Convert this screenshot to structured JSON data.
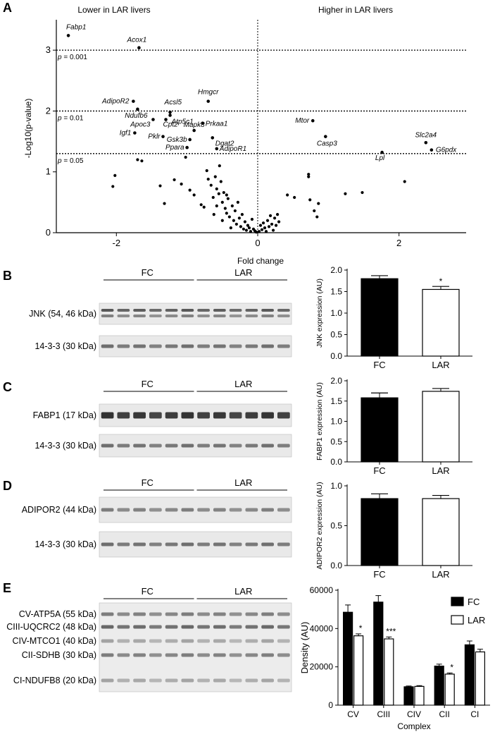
{
  "panels": {
    "A": "A",
    "B": "B",
    "C": "C",
    "D": "D",
    "E": "E"
  },
  "chart_data": [
    {
      "panel": "A",
      "type": "scatter",
      "xlabel": "Fold change",
      "ylabel": "-Log10(p-value)",
      "xlim": [
        -2.85,
        2.95
      ],
      "ylim": [
        0,
        3.5
      ],
      "xticks": [
        "-2",
        "0",
        "2"
      ],
      "yticks": [
        "0",
        "1",
        "2",
        "3"
      ],
      "region_labels": [
        "Lower in LAR livers",
        "Higher in LAR livers"
      ],
      "thresholds": [
        {
          "y": 3.0,
          "label": "p = 0.001"
        },
        {
          "y": 2.0,
          "label": "p = 0.01"
        },
        {
          "y": 1.3,
          "label": "p = 0.05"
        }
      ],
      "labeled_points": [
        {
          "name": "Fabp1",
          "x": -2.68,
          "y": 3.24
        },
        {
          "name": "Acox1",
          "x": -1.68,
          "y": 3.04
        },
        {
          "name": "AdipoR2",
          "x": -1.76,
          "y": 2.16
        },
        {
          "name": "Ndufb6",
          "x": -1.7,
          "y": 2.03
        },
        {
          "name": "Acsl5",
          "x": -1.24,
          "y": 1.98
        },
        {
          "name": "Hmgcr",
          "x": -0.7,
          "y": 2.16
        },
        {
          "name": "Atp5c1",
          "x": -1.24,
          "y": 1.93
        },
        {
          "name": "Apoc3",
          "x": -1.48,
          "y": 1.86
        },
        {
          "name": "Cpt2",
          "x": -1.3,
          "y": 1.86
        },
        {
          "name": "Prkaa1",
          "x": -0.78,
          "y": 1.8
        },
        {
          "name": "Igf1",
          "x": -1.74,
          "y": 1.64
        },
        {
          "name": "Mapk8",
          "x": -0.9,
          "y": 1.68
        },
        {
          "name": "Pklr",
          "x": -1.34,
          "y": 1.58
        },
        {
          "name": "Gsk3b",
          "x": -0.96,
          "y": 1.53
        },
        {
          "name": "Dgat2",
          "x": -0.64,
          "y": 1.56
        },
        {
          "name": "Ppara",
          "x": -1.0,
          "y": 1.4
        },
        {
          "name": "AdipoR1",
          "x": -0.58,
          "y": 1.38
        },
        {
          "name": "Mtor",
          "x": 0.78,
          "y": 1.84
        },
        {
          "name": "Casp3",
          "x": 0.96,
          "y": 1.58
        },
        {
          "name": "Lpl",
          "x": 1.76,
          "y": 1.32
        },
        {
          "name": "Slc2a4",
          "x": 2.38,
          "y": 1.48
        },
        {
          "name": "G6pdx",
          "x": 2.46,
          "y": 1.36
        }
      ],
      "points": [
        {
          "x": -2.02,
          "y": 0.94
        },
        {
          "x": -2.05,
          "y": 0.76
        },
        {
          "x": -1.7,
          "y": 1.2
        },
        {
          "x": -1.64,
          "y": 1.18
        },
        {
          "x": -1.38,
          "y": 0.77
        },
        {
          "x": -1.32,
          "y": 0.48
        },
        {
          "x": -1.18,
          "y": 0.87
        },
        {
          "x": -1.08,
          "y": 0.8
        },
        {
          "x": -1.02,
          "y": 1.24
        },
        {
          "x": -0.96,
          "y": 0.7
        },
        {
          "x": -0.9,
          "y": 0.62
        },
        {
          "x": -0.8,
          "y": 0.46
        },
        {
          "x": -0.76,
          "y": 0.42
        },
        {
          "x": -0.72,
          "y": 1.02
        },
        {
          "x": -0.7,
          "y": 0.88
        },
        {
          "x": -0.66,
          "y": 0.78
        },
        {
          "x": -0.63,
          "y": 0.58
        },
        {
          "x": -0.6,
          "y": 0.92
        },
        {
          "x": -0.58,
          "y": 0.72
        },
        {
          "x": -0.55,
          "y": 0.64
        },
        {
          "x": -0.54,
          "y": 1.1
        },
        {
          "x": -0.52,
          "y": 0.84
        },
        {
          "x": -0.5,
          "y": 0.5
        },
        {
          "x": -0.48,
          "y": 0.66
        },
        {
          "x": -0.46,
          "y": 0.4
        },
        {
          "x": -0.44,
          "y": 0.32
        },
        {
          "x": -0.42,
          "y": 0.56
        },
        {
          "x": -0.4,
          "y": 0.26
        },
        {
          "x": -0.36,
          "y": 0.44
        },
        {
          "x": -0.34,
          "y": 0.2
        },
        {
          "x": -0.32,
          "y": 0.36
        },
        {
          "x": -0.3,
          "y": 0.14
        },
        {
          "x": -0.28,
          "y": 0.5
        },
        {
          "x": -0.26,
          "y": 0.24
        },
        {
          "x": -0.24,
          "y": 0.1
        },
        {
          "x": -0.22,
          "y": 0.3
        },
        {
          "x": -0.2,
          "y": 0.06
        },
        {
          "x": -0.18,
          "y": 0.18
        },
        {
          "x": -0.16,
          "y": 0.04
        },
        {
          "x": -0.14,
          "y": 0.12
        },
        {
          "x": -0.12,
          "y": 0.08
        },
        {
          "x": -0.1,
          "y": 0.02
        },
        {
          "x": -0.08,
          "y": 0.22
        },
        {
          "x": -0.06,
          "y": 0.06
        },
        {
          "x": -0.04,
          "y": 0.03
        },
        {
          "x": -0.02,
          "y": 0.01
        },
        {
          "x": -0.58,
          "y": 0.44
        },
        {
          "x": -0.62,
          "y": 0.3
        },
        {
          "x": -0.44,
          "y": 0.62
        },
        {
          "x": -0.5,
          "y": 0.2
        },
        {
          "x": -0.38,
          "y": 0.08
        },
        {
          "x": 0.02,
          "y": 0.02
        },
        {
          "x": 0.04,
          "y": 0.12
        },
        {
          "x": 0.06,
          "y": 0.05
        },
        {
          "x": 0.08,
          "y": 0.16
        },
        {
          "x": 0.1,
          "y": 0.08
        },
        {
          "x": 0.12,
          "y": 0.02
        },
        {
          "x": 0.14,
          "y": 0.2
        },
        {
          "x": 0.16,
          "y": 0.1
        },
        {
          "x": 0.18,
          "y": 0.28
        },
        {
          "x": 0.2,
          "y": 0.14
        },
        {
          "x": 0.22,
          "y": 0.04
        },
        {
          "x": 0.24,
          "y": 0.24
        },
        {
          "x": 0.26,
          "y": 0.12
        },
        {
          "x": 0.28,
          "y": 0.3
        },
        {
          "x": 0.3,
          "y": 0.18
        },
        {
          "x": 0.42,
          "y": 0.62
        },
        {
          "x": 0.52,
          "y": 0.58
        },
        {
          "x": 0.72,
          "y": 0.96
        },
        {
          "x": 0.72,
          "y": 0.92
        },
        {
          "x": 0.74,
          "y": 0.54
        },
        {
          "x": 0.8,
          "y": 0.36
        },
        {
          "x": 0.84,
          "y": 0.26
        },
        {
          "x": 0.86,
          "y": 0.48
        },
        {
          "x": 1.24,
          "y": 0.64
        },
        {
          "x": 1.48,
          "y": 0.66
        },
        {
          "x": 2.08,
          "y": 0.84
        }
      ]
    },
    {
      "panel": "B",
      "type": "bar",
      "categories": [
        "FC",
        "LAR"
      ],
      "values": [
        1.8,
        1.55
      ],
      "errors": [
        0.07,
        0.07
      ],
      "fills": [
        "#000000",
        "#ffffff"
      ],
      "annotations": [
        "",
        "*"
      ],
      "ylabel": "JNK expression (AU)",
      "ylim": [
        0,
        2.0
      ],
      "yticks": [
        "0.0",
        "0.5",
        "1.0",
        "1.5",
        "2.0"
      ]
    },
    {
      "panel": "C",
      "type": "bar",
      "categories": [
        "FC",
        "LAR"
      ],
      "values": [
        1.58,
        1.74
      ],
      "errors": [
        0.12,
        0.07
      ],
      "fills": [
        "#000000",
        "#ffffff"
      ],
      "annotations": [
        "",
        ""
      ],
      "ylabel": "FABP1 expression (AU)",
      "ylim": [
        0,
        2.0
      ],
      "yticks": [
        "0.0",
        "0.5",
        "1.0",
        "1.5",
        "2.0"
      ]
    },
    {
      "panel": "D",
      "type": "bar",
      "categories": [
        "FC",
        "LAR"
      ],
      "values": [
        0.84,
        0.84
      ],
      "errors": [
        0.06,
        0.04
      ],
      "fills": [
        "#000000",
        "#ffffff"
      ],
      "annotations": [
        "",
        ""
      ],
      "ylabel": "ADIPOR2 expression (AU)",
      "ylim": [
        0,
        1.0
      ],
      "yticks": [
        "0.0",
        "0.5",
        "1.0"
      ]
    },
    {
      "panel": "E",
      "type": "bar",
      "categories": [
        "CV",
        "CIII",
        "CIV",
        "CII",
        "CI"
      ],
      "xlabel": "Complex",
      "ylabel": "Density (AU)",
      "ylim": [
        0,
        60000
      ],
      "yticks": [
        "0",
        "20000",
        "40000",
        "60000"
      ],
      "legend_position": "top-right",
      "series": [
        {
          "name": "FC",
          "fill": "#000000",
          "values": [
            48500,
            53800,
            9600,
            20400,
            31500
          ],
          "errors": [
            3800,
            3400,
            400,
            1000,
            2000
          ],
          "annotations": [
            "",
            "",
            "",
            "",
            ""
          ]
        },
        {
          "name": "LAR",
          "fill": "#ffffff",
          "values": [
            36200,
            34600,
            9800,
            16200,
            27800
          ],
          "errors": [
            1000,
            1000,
            400,
            600,
            1400
          ],
          "annotations": [
            "*",
            "***",
            "",
            "*",
            ""
          ]
        }
      ]
    }
  ],
  "blots": {
    "B": {
      "groups": [
        "FC",
        "LAR"
      ],
      "rows": [
        {
          "label": "JNK (54, 46 kDa)",
          "strength": 0.75,
          "double": true
        },
        {
          "label": "14-3-3 (30 kDa)",
          "strength": 0.6,
          "double": false
        }
      ]
    },
    "C": {
      "groups": [
        "FC",
        "LAR"
      ],
      "rows": [
        {
          "label": "FABP1 (17 kDa)",
          "strength": 1.0,
          "double": false
        },
        {
          "label": "14-3-3 (30 kDa)",
          "strength": 0.6,
          "double": false
        }
      ]
    },
    "D": {
      "groups": [
        "FC",
        "LAR"
      ],
      "rows": [
        {
          "label": "ADIPOR2 (44 kDa)",
          "strength": 0.5,
          "double": false
        },
        {
          "label": "14-3-3 (30 kDa)",
          "strength": 0.6,
          "double": false
        }
      ]
    },
    "E": {
      "groups": [
        "FC",
        "LAR"
      ],
      "rows": [
        {
          "label": "CV-ATP5A (55 kDa)",
          "strength": 0.5
        },
        {
          "label": "CIII-UQCRC2 (48 kDa)",
          "strength": 0.65
        },
        {
          "label": "CIV-MTCO1 (40 kDa)",
          "strength": 0.25
        },
        {
          "label": "CII-SDHB (30 kDa)",
          "strength": 0.5
        },
        {
          "label": "CI-NDUFB8 (20 kDa)",
          "strength": 0.25
        }
      ]
    }
  }
}
